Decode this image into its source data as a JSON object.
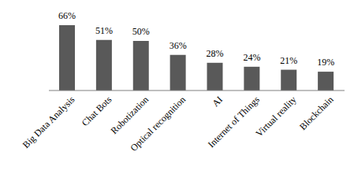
{
  "chart_data": {
    "type": "bar",
    "categories": [
      "Big Data Analysis",
      "Chat Bots",
      "Robotization",
      "Optical recognition",
      "AI",
      "Internet of Things",
      "Virtual reality",
      "Blockchain"
    ],
    "values": [
      66,
      51,
      50,
      36,
      28,
      24,
      21,
      19
    ],
    "value_labels": [
      "66%",
      "51%",
      "50%",
      "36%",
      "28%",
      "24%",
      "21%",
      "19%"
    ],
    "color": "#595959",
    "data_labels": true,
    "tick_labels": "x"
  }
}
